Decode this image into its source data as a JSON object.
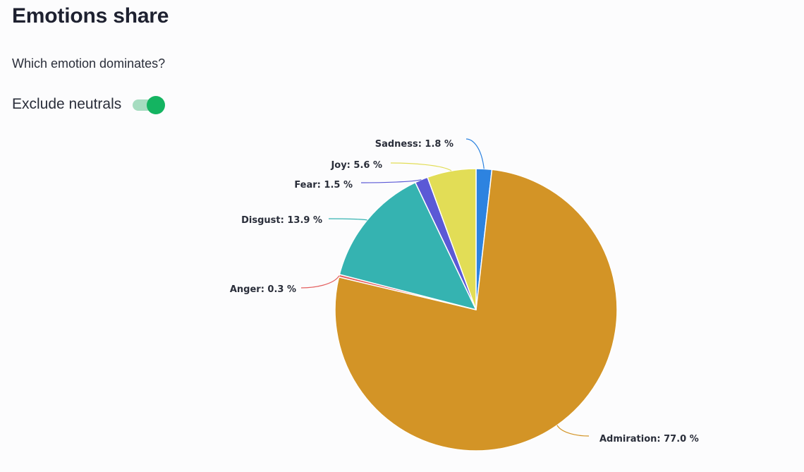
{
  "header": {
    "title": "Emotions share",
    "subtitle": "Which emotion dominates?"
  },
  "toggle": {
    "label": "Exclude neutrals",
    "checked": true,
    "color": "#14b461"
  },
  "chart_data": {
    "type": "pie",
    "title": "",
    "unit": "%",
    "slices": [
      {
        "label": "Sadness",
        "value": 1.8,
        "display": "Sadness: 1.8 %",
        "color": "#2d83e0"
      },
      {
        "label": "Admiration",
        "value": 77.0,
        "display": "Admiration: 77.0 %",
        "color": "#d39426"
      },
      {
        "label": "Anger",
        "value": 0.3,
        "display": "Anger: 0.3 %",
        "color": "#e45f5f"
      },
      {
        "label": "Disgust",
        "value": 13.9,
        "display": "Disgust: 13.9 %",
        "color": "#35b3b1"
      },
      {
        "label": "Fear",
        "value": 1.5,
        "display": "Fear: 1.5 %",
        "color": "#5b59d6"
      },
      {
        "label": "Joy",
        "value": 5.6,
        "display": "Joy: 5.6 %",
        "color": "#e2dd56"
      }
    ],
    "start": "top, clockwise",
    "legend": "none",
    "data_labels": "outside with leader lines"
  }
}
